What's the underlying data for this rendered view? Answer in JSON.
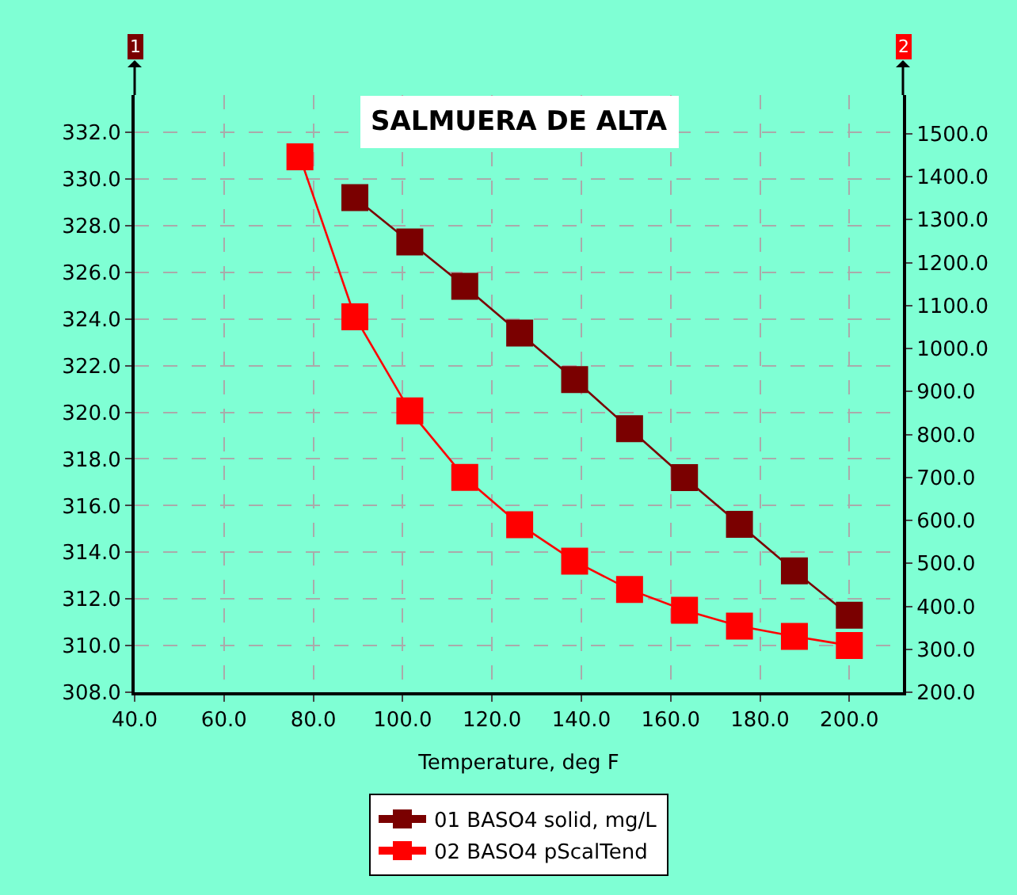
{
  "chart_data": {
    "type": "line",
    "title": "SALMUERA DE ALTA",
    "xlabel": "Temperature, deg F",
    "ylabel": "1",
    "y2label": "2",
    "x": [
      77,
      89.3,
      101.6,
      113.9,
      126.2,
      138.5,
      150.8,
      163.1,
      175.4,
      187.7,
      200
    ],
    "series": [
      {
        "name": "01 BASO4 solid, mg/L",
        "color": "#7a0000",
        "values": [
          null,
          329.2,
          327.3,
          325.4,
          323.4,
          321.4,
          319.3,
          317.2,
          315.2,
          313.2,
          311.3
        ]
      },
      {
        "name": "02 BASO4 pScalTend",
        "color": "#ff0000",
        "axis": "y2",
        "values": [
          1446,
          1074,
          855,
          700,
          590,
          505,
          439,
          391,
          354,
          330,
          309
        ]
      }
    ],
    "xlim": [
      40,
      212
    ],
    "xticks": [
      {
        "value": 40,
        "label": "40.0"
      },
      {
        "value": 60,
        "label": "60.0"
      },
      {
        "value": 80,
        "label": "80.0"
      },
      {
        "value": 100,
        "label": "100.0"
      },
      {
        "value": 120,
        "label": "120.0"
      },
      {
        "value": 140,
        "label": "140.0"
      },
      {
        "value": 160,
        "label": "160.0"
      },
      {
        "value": 180,
        "label": "180.0"
      },
      {
        "value": 200,
        "label": "200.0"
      }
    ],
    "ylim": [
      308,
      333.6
    ],
    "yticks": [
      {
        "value": 308,
        "label": "308.0"
      },
      {
        "value": 310,
        "label": "310.0"
      },
      {
        "value": 312,
        "label": "312.0"
      },
      {
        "value": 314,
        "label": "314.0"
      },
      {
        "value": 316,
        "label": "316.0"
      },
      {
        "value": 318,
        "label": "318.0"
      },
      {
        "value": 320,
        "label": "320.0"
      },
      {
        "value": 322,
        "label": "322.0"
      },
      {
        "value": 324,
        "label": "324.0"
      },
      {
        "value": 326,
        "label": "326.0"
      },
      {
        "value": 328,
        "label": "328.0"
      },
      {
        "value": 330,
        "label": "330.0"
      },
      {
        "value": 332,
        "label": "332.0"
      }
    ],
    "y2lim": [
      200,
      1590
    ],
    "y2ticks": [
      {
        "value": 200,
        "label": "200.0"
      },
      {
        "value": 300,
        "label": "300.0"
      },
      {
        "value": 400,
        "label": "400.0"
      },
      {
        "value": 500,
        "label": "500.0"
      },
      {
        "value": 600,
        "label": "600.0"
      },
      {
        "value": 700,
        "label": "700.0"
      },
      {
        "value": 800,
        "label": "800.0"
      },
      {
        "value": 900,
        "label": "900.0"
      },
      {
        "value": 1000,
        "label": "1000.0"
      },
      {
        "value": 1100,
        "label": "1100.0"
      },
      {
        "value": 1200,
        "label": "1200.0"
      },
      {
        "value": 1300,
        "label": "1300.0"
      },
      {
        "value": 1400,
        "label": "1400.0"
      },
      {
        "value": 1500,
        "label": "1500.0"
      }
    ],
    "grid": true,
    "legend": "bottom",
    "marker": "square",
    "line_style": "solid"
  }
}
